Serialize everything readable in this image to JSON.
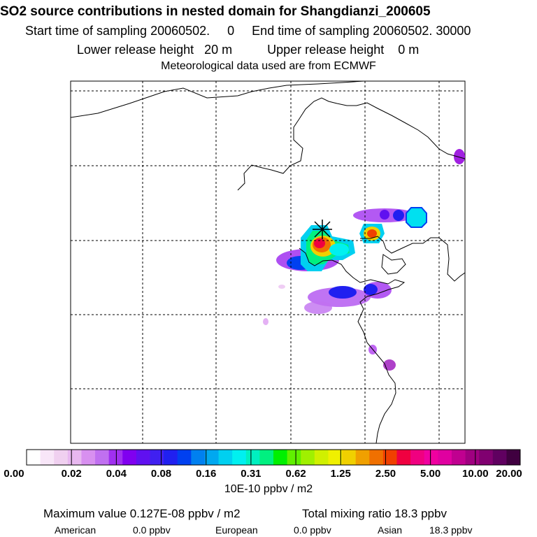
{
  "header": {
    "title": "SO2 source contributions in nested domain for Shangdianzi_200605",
    "sampling_line": "Start time of sampling 20060502.     0     End time of sampling 20060502. 30000",
    "release_line": "Lower release height   20 m          Upper release height    0 m",
    "met_line": "Meteorological data used are from ECMWF"
  },
  "colorbar": {
    "colors": [
      "#ffffff",
      "#f8e6f8",
      "#f0d0f0",
      "#e8b8f0",
      "#d890f0",
      "#c070f0",
      "#a030f0",
      "#8000f0",
      "#6010f0",
      "#4020f0",
      "#2020f0",
      "#0040f0",
      "#0080f0",
      "#00a8f0",
      "#00d0f0",
      "#00f0f0",
      "#00f0c0",
      "#00f080",
      "#00f000",
      "#60f000",
      "#a0f000",
      "#d0f000",
      "#f0f000",
      "#f0d000",
      "#f0a000",
      "#f07000",
      "#f04000",
      "#f00040",
      "#f00080",
      "#f000a0",
      "#e000a0",
      "#c00090",
      "#a00080",
      "#800070",
      "#600060",
      "#400040"
    ],
    "ticks": [
      "0.00",
      "0.02",
      "0.04",
      "0.08",
      "0.16",
      "0.31",
      "0.62",
      "1.25",
      "2.50",
      "5.00",
      "10.00",
      "20.00"
    ],
    "unit": "10E-10 ppbv / m2"
  },
  "summary": {
    "max_value": "Maximum value  0.127E-08 ppbv / m2",
    "total": "Total mixing ratio      18.3 ppbv",
    "american_label": "American",
    "american_value": "0.0 ppbv",
    "european_label": "European",
    "european_value": "0.0 ppbv",
    "asian_label": "Asian",
    "asian_value": "18.3 ppbv"
  },
  "map": {
    "source_marker": "station-marker-icon"
  }
}
